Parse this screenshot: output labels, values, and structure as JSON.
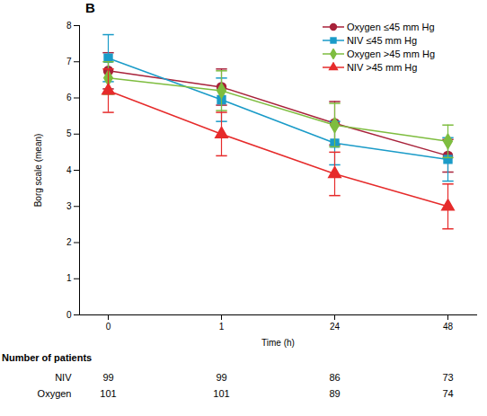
{
  "chart_data": {
    "type": "line",
    "title": "B",
    "x_label": "Time (h)",
    "y_label": "Borg scale (mean)",
    "categories": [
      "0",
      "1",
      "24",
      "48"
    ],
    "ylim": [
      0,
      8
    ],
    "yticks": [
      0,
      1,
      2,
      3,
      4,
      5,
      6,
      7,
      8
    ],
    "legend": "top-right",
    "series": [
      {
        "name": "Oxygen ≤45 mm Hg",
        "color": "#a8223a",
        "marker": "circle",
        "values": [
          6.75,
          6.3,
          5.3,
          4.4
        ],
        "error": [
          0.5,
          0.5,
          0.6,
          0.45
        ]
      },
      {
        "name": "NIV ≤45 mm Hg",
        "color": "#1a9bc8",
        "marker": "square",
        "values": [
          7.1,
          5.95,
          4.75,
          4.3
        ],
        "error": [
          0.65,
          0.6,
          0.6,
          0.6
        ]
      },
      {
        "name": "Oxygen >45 mm Hg",
        "color": "#7ebd3f",
        "marker": "diamond",
        "values": [
          6.55,
          6.2,
          5.25,
          4.8
        ],
        "error": [
          0.45,
          0.55,
          0.6,
          0.45
        ]
      },
      {
        "name": "NIV >45 mm Hg",
        "color": "#e62b2b",
        "marker": "triangle",
        "values": [
          6.2,
          5.0,
          3.9,
          3.0
        ],
        "error": [
          0.6,
          0.6,
          0.6,
          0.62
        ]
      }
    ],
    "table": {
      "title": "Number of patients",
      "rows": [
        {
          "name": "NIV",
          "values": [
            99,
            99,
            86,
            73
          ]
        },
        {
          "name": "Oxygen",
          "values": [
            101,
            101,
            89,
            74
          ]
        }
      ]
    }
  }
}
